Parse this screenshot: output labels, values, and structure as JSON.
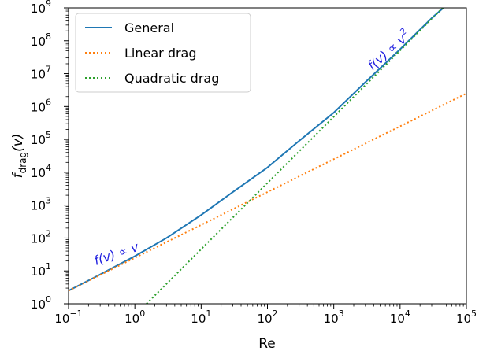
{
  "chart_data": {
    "type": "line",
    "xscale": "log",
    "yscale": "log",
    "xlim": [
      0.1,
      100000
    ],
    "ylim": [
      1,
      1000000000
    ],
    "xlabel": "Re",
    "ylabel_main": "f",
    "ylabel_sub": "drag",
    "ylabel_suffix": "(v)",
    "x_ticks": [
      {
        "base": "10",
        "exp": "−1",
        "value": 0.1
      },
      {
        "base": "10",
        "exp": "0",
        "value": 1
      },
      {
        "base": "10",
        "exp": "1",
        "value": 10
      },
      {
        "base": "10",
        "exp": "2",
        "value": 100
      },
      {
        "base": "10",
        "exp": "3",
        "value": 1000
      },
      {
        "base": "10",
        "exp": "4",
        "value": 10000
      },
      {
        "base": "10",
        "exp": "5",
        "value": 100000
      }
    ],
    "y_ticks": [
      {
        "base": "10",
        "exp": "0",
        "value": 1
      },
      {
        "base": "10",
        "exp": "1",
        "value": 10
      },
      {
        "base": "10",
        "exp": "2",
        "value": 100
      },
      {
        "base": "10",
        "exp": "3",
        "value": 1000
      },
      {
        "base": "10",
        "exp": "4",
        "value": 10000
      },
      {
        "base": "10",
        "exp": "5",
        "value": 100000
      },
      {
        "base": "10",
        "exp": "6",
        "value": 1000000
      },
      {
        "base": "10",
        "exp": "7",
        "value": 10000000
      },
      {
        "base": "10",
        "exp": "8",
        "value": 100000000
      },
      {
        "base": "10",
        "exp": "9",
        "value": 1000000000
      }
    ],
    "series": [
      {
        "name": "General",
        "color": "#1f77b4",
        "style": "solid",
        "x": [
          0.1,
          0.3,
          1,
          3,
          10,
          30,
          100,
          300,
          1000,
          3000,
          10000,
          30000,
          45000
        ],
        "y": [
          2.5,
          7.8,
          28,
          100,
          500,
          2500,
          14000,
          90000,
          650000,
          5500000,
          55000000,
          490000000,
          1000000000
        ]
      },
      {
        "name": "Linear drag",
        "color": "#ff7f0e",
        "style": "dotted",
        "x": [
          0.1,
          100000
        ],
        "y": [
          2.5,
          2500000
        ]
      },
      {
        "name": "Quadratic drag",
        "color": "#2ca02c",
        "style": "dotted",
        "x": [
          1.5,
          44000
        ],
        "y": [
          1,
          1000000000
        ]
      }
    ],
    "legend": {
      "position": "top-left"
    },
    "annotations": [
      {
        "text_main": "f(v) ∝ v",
        "text_sup": "",
        "color": "#1f1fe0"
      },
      {
        "text_main": "f(v) ∝ v",
        "text_sup": "2",
        "color": "#1f1fe0"
      }
    ]
  }
}
